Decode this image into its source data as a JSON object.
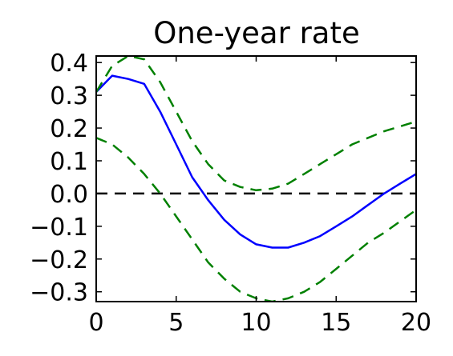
{
  "chart_data": {
    "type": "line",
    "title": "One-year rate",
    "xlabel": "",
    "ylabel": "",
    "xlim": [
      0,
      20
    ],
    "ylim": [
      -0.33,
      0.42
    ],
    "x_ticks": [
      0,
      5,
      10,
      15,
      20
    ],
    "x_tick_labels": [
      "0",
      "5",
      "10",
      "15",
      "20"
    ],
    "y_ticks": [
      0.4,
      0.3,
      0.2,
      0.1,
      0.0,
      -0.1,
      -0.2,
      -0.3
    ],
    "y_tick_labels": [
      "0.4",
      "0.3",
      "0.2",
      "0.1",
      "0.0",
      "−0.1",
      "−0.2",
      "−0.3"
    ],
    "grid": false,
    "reference_line": {
      "y": 0.0,
      "color": "#000000",
      "style": "dashed"
    },
    "series": [
      {
        "color": "#0000ff",
        "style": "solid",
        "x": [
          0,
          1,
          2,
          3,
          4,
          5,
          6,
          7,
          8,
          9,
          10,
          11,
          12,
          13,
          14,
          15,
          16,
          17,
          18,
          19,
          20
        ],
        "y": [
          0.31,
          0.36,
          0.35,
          0.335,
          0.25,
          0.15,
          0.05,
          -0.02,
          -0.08,
          -0.125,
          -0.155,
          -0.165,
          -0.165,
          -0.15,
          -0.13,
          -0.1,
          -0.07,
          -0.035,
          0.0,
          0.03,
          0.06
        ]
      },
      {
        "color": "#008000",
        "style": "dashed",
        "x": [
          0,
          1,
          2,
          3,
          4,
          5,
          6,
          7,
          8,
          9,
          10,
          11,
          12,
          13,
          14,
          15,
          16,
          17,
          18,
          19,
          20
        ],
        "y": [
          0.31,
          0.39,
          0.42,
          0.41,
          0.34,
          0.25,
          0.16,
          0.09,
          0.04,
          0.02,
          0.01,
          0.015,
          0.03,
          0.06,
          0.09,
          0.12,
          0.15,
          0.17,
          0.19,
          0.205,
          0.22
        ]
      },
      {
        "color": "#008000",
        "style": "dashed",
        "x": [
          0,
          1,
          2,
          3,
          4,
          5,
          6,
          7,
          8,
          9,
          10,
          11,
          12,
          13,
          14,
          15,
          16,
          17,
          18,
          19,
          20
        ],
        "y": [
          0.17,
          0.15,
          0.11,
          0.06,
          0.0,
          -0.07,
          -0.14,
          -0.21,
          -0.26,
          -0.3,
          -0.32,
          -0.33,
          -0.32,
          -0.3,
          -0.27,
          -0.23,
          -0.19,
          -0.15,
          -0.12,
          -0.085,
          -0.05
        ]
      }
    ]
  }
}
